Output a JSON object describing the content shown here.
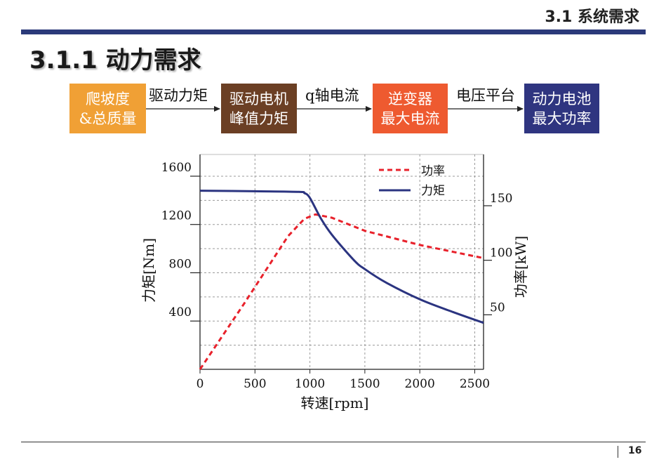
{
  "header": {
    "section_title": "3.1 系统需求"
  },
  "slide": {
    "title": "3.1.1 动力需求"
  },
  "flow": {
    "boxes": [
      {
        "lines": [
          "爬坡度",
          "&总质量"
        ],
        "color": "#f0a035"
      },
      {
        "lines": [
          "驱动电机",
          "峰值力矩"
        ],
        "color": "#6b3f24"
      },
      {
        "lines": [
          "逆变器",
          "最大电流"
        ],
        "color": "#ee5a30"
      },
      {
        "lines": [
          "动力电池",
          "最大功率"
        ],
        "color": "#2f3580"
      }
    ],
    "arrows": [
      "驱动力矩",
      "q轴电流",
      "电压平台"
    ]
  },
  "chart_data": {
    "type": "line",
    "xlabel": "转速[rpm]",
    "ylabel_left": "力矩[Nm]",
    "ylabel_right": "功率[kW]",
    "x_ticks": [
      "0",
      "500",
      "1000",
      "1500",
      "2000",
      "2500"
    ],
    "y_left_ticks": [
      "400",
      "800",
      "1200",
      "1600"
    ],
    "y_right_ticks": [
      "50",
      "100",
      "150"
    ],
    "xlim": [
      0,
      2580
    ],
    "ylim_left": [
      0,
      1780
    ],
    "ylim_right": [
      0,
      197
    ],
    "grid": true,
    "legend_position": "top-right",
    "series": [
      {
        "name": "功率",
        "axis": "right",
        "style": "dashed",
        "color": "#e8212b",
        "x": [
          0,
          400,
          800,
          950,
          1050,
          1200,
          1500,
          2000,
          2580
        ],
        "y": [
          0,
          60,
          122,
          138,
          142,
          139,
          127,
          114,
          102
        ]
      },
      {
        "name": "力矩",
        "axis": "left",
        "style": "solid",
        "color": "#2b3480",
        "x": [
          0,
          500,
          900,
          950,
          1000,
          1100,
          1200,
          1400,
          1500,
          1700,
          2000,
          2300,
          2580
        ],
        "y": [
          1480,
          1475,
          1470,
          1460,
          1420,
          1250,
          1115,
          905,
          830,
          715,
          580,
          475,
          385
        ]
      }
    ]
  },
  "footer": {
    "page_number": "16"
  }
}
